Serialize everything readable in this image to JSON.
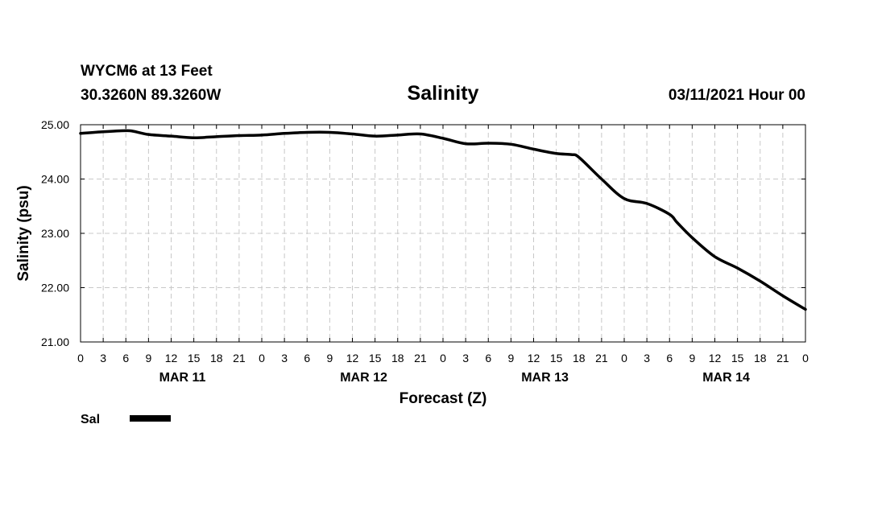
{
  "header": {
    "station": "WYCM6 at 13 Feet",
    "coords": "30.3260N 89.3260W",
    "datetime": "03/11/2021 Hour 00"
  },
  "chart_data": {
    "type": "line",
    "title": "Salinity",
    "xlabel": "Forecast (Z)",
    "ylabel": "Salinity (psu)",
    "ylim": [
      21.0,
      25.0
    ],
    "yticks": [
      "21.00",
      "22.00",
      "23.00",
      "24.00",
      "25.00"
    ],
    "xlim_hours": [
      0,
      96
    ],
    "xtick_labels": [
      "0",
      "3",
      "6",
      "9",
      "12",
      "15",
      "18",
      "21",
      "0",
      "3",
      "6",
      "9",
      "12",
      "15",
      "18",
      "21",
      "0",
      "3",
      "6",
      "9",
      "12",
      "15",
      "18",
      "21",
      "0",
      "3",
      "6",
      "9",
      "12",
      "15",
      "18",
      "21",
      "0"
    ],
    "day_labels": [
      {
        "label": "MAR 11",
        "center_hour": 13.5
      },
      {
        "label": "MAR 12",
        "center_hour": 37.5
      },
      {
        "label": "MAR 13",
        "center_hour": 61.5
      },
      {
        "label": "MAR 14",
        "center_hour": 85.5
      }
    ],
    "grid": true,
    "legend_position": "bottom-left",
    "series": [
      {
        "name": "Sal",
        "color": "#000000",
        "x": [
          0,
          3,
          6,
          7,
          9,
          12,
          15,
          18,
          21,
          24,
          27,
          30,
          33,
          36,
          39,
          42,
          45,
          48,
          51,
          54,
          57,
          60,
          63,
          65,
          66,
          69,
          72,
          75,
          78,
          79,
          81,
          84,
          87,
          90,
          93,
          96
        ],
        "values": [
          24.84,
          24.87,
          24.89,
          24.88,
          24.82,
          24.79,
          24.76,
          24.78,
          24.8,
          24.81,
          24.84,
          24.86,
          24.86,
          24.83,
          24.79,
          24.81,
          24.83,
          24.75,
          24.65,
          24.66,
          24.64,
          24.55,
          24.47,
          24.45,
          24.4,
          24.0,
          23.64,
          23.55,
          23.35,
          23.2,
          22.92,
          22.57,
          22.36,
          22.12,
          21.85,
          21.6
        ]
      }
    ]
  }
}
